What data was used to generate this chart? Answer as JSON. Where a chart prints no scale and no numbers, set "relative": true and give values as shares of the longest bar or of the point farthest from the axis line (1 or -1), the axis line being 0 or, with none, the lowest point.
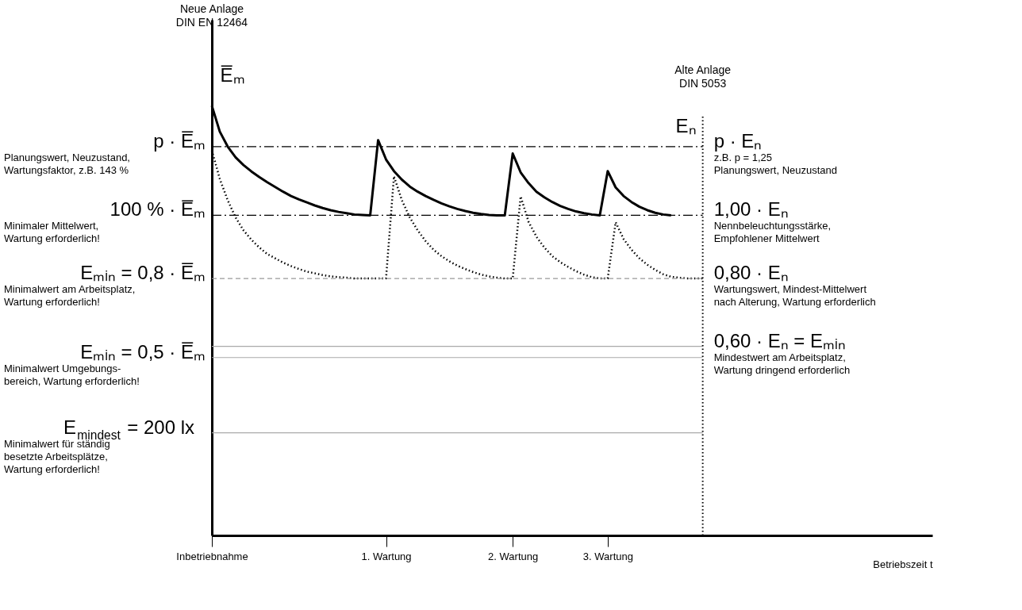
{
  "chart_data": {
    "type": "line",
    "relative": true,
    "xlabel": "Betriebszeit t",
    "ylabel": "E̅ₘ",
    "y2label": "Eₙ",
    "marker": "none",
    "categories": [
      "Inbetriebnahme",
      null,
      null,
      null,
      null,
      null,
      null,
      null,
      null,
      null,
      null,
      null,
      null,
      null,
      null,
      null,
      null,
      null,
      null,
      null,
      null,
      null,
      "1. Wartung",
      null,
      null,
      null,
      null,
      null,
      null,
      null,
      null,
      null,
      null,
      null,
      null,
      null,
      null,
      null,
      "2. Wartung",
      null,
      null,
      null,
      null,
      null,
      null,
      null,
      null,
      null,
      null,
      null,
      "3. Wartung",
      null,
      null,
      null,
      null,
      null,
      null,
      null,
      null,
      null,
      null,
      null,
      null,
      null,
      null,
      null,
      null,
      null,
      null,
      null,
      null,
      null,
      null,
      null,
      null,
      null,
      null,
      null,
      null,
      null,
      null,
      null,
      null,
      null,
      null,
      null,
      null,
      null,
      null,
      null,
      null,
      null
    ],
    "series": [
      {
        "color": "#000000",
        "line_style": "solid",
        "values": [
          1.0,
          0.94,
          0.905,
          0.88,
          0.862,
          0.847,
          0.834,
          0.822,
          0.811,
          0.8,
          0.79,
          0.782,
          0.775,
          0.768,
          0.762,
          0.757,
          0.753,
          0.75,
          0.747,
          0.746,
          0.745,
          0.92,
          0.875,
          0.848,
          0.828,
          0.812,
          0.8,
          0.79,
          0.781,
          0.773,
          0.766,
          0.76,
          0.755,
          0.751,
          0.748,
          0.746,
          0.745,
          0.745,
          0.889,
          0.845,
          0.82,
          0.8,
          0.787,
          0.776,
          0.767,
          0.76,
          0.754,
          0.75,
          0.747,
          0.745,
          0.848,
          0.81,
          0.79,
          0.776,
          0.765,
          0.757,
          0.751,
          0.747,
          0.745,
          null,
          null,
          null,
          null,
          null,
          null,
          null,
          null,
          null,
          null,
          null,
          null,
          null,
          null,
          null,
          null,
          null,
          null,
          null,
          null,
          null,
          null,
          null,
          null,
          null,
          null,
          null,
          null,
          null,
          null,
          null,
          null,
          null
        ]
      },
      {
        "color": "#000000",
        "line_style": "dotted",
        "values": [
          0.896,
          0.83,
          0.78,
          0.74,
          0.71,
          0.688,
          0.67,
          0.655,
          0.645,
          0.635,
          0.627,
          0.62,
          0.614,
          0.61,
          0.606,
          0.603,
          0.601,
          0.6,
          0.598,
          0.598,
          0.598,
          0.598,
          0.598,
          0.836,
          0.78,
          0.74,
          0.71,
          0.685,
          0.665,
          0.65,
          0.638,
          0.628,
          0.62,
          0.613,
          0.607,
          0.603,
          0.6,
          0.598,
          0.598,
          0.789,
          0.73,
          0.695,
          0.67,
          0.65,
          0.636,
          0.625,
          0.615,
          0.607,
          0.601,
          0.598,
          0.598,
          0.729,
          0.69,
          0.665,
          0.645,
          0.63,
          0.618,
          0.608,
          0.602,
          0.6,
          0.598,
          0.598,
          0.598,
          null,
          null,
          null,
          null,
          null,
          null,
          null,
          null,
          null,
          null,
          null,
          null,
          null,
          null,
          null,
          null,
          null,
          null,
          null,
          null,
          null,
          null,
          null,
          null,
          null,
          null,
          null,
          null,
          null
        ]
      }
    ],
    "ref_lines": [
      {
        "axis": "y",
        "value": 0.905,
        "color": "#000000",
        "line_style": "dashdot"
      },
      {
        "axis": "y",
        "value": 0.745,
        "color": "#000000",
        "line_style": "dashdot"
      },
      {
        "axis": "y",
        "value": 0.598,
        "color": "#999999",
        "line_style": "dashed"
      },
      {
        "axis": "y",
        "value": 0.44,
        "color": "#aaaaaa",
        "line_style": "solid"
      },
      {
        "axis": "y",
        "value": 0.414,
        "color": "#aaaaaa",
        "line_style": "solid"
      },
      {
        "axis": "y",
        "value": 0.239,
        "color": "#aaaaaa",
        "line_style": "solid"
      }
    ],
    "annotations": [
      "Neue Anlage\nDIN EN 12464",
      "Alte Anlage\nDIN 5053",
      "p · E̅ₘ",
      "Planungswert, Neuzustand,\nWartungsfaktor, z.B. 143 %",
      "100 % · E̅ₘ",
      "Minimaler Mittelwert,\nWartung erforderlich!",
      "Eₘᵢₙ = 0,8 · E̅ₘ",
      "Minimalwert am Arbeitsplatz,\nWartung erforderlich!",
      "Eₘᵢₙ = 0,5 · E̅ₘ",
      "Minimalwert Umgebungs-\nbereich, Wartung erforderlich!",
      "E$_{mindest}$ = 200 lx",
      "Minimalwert für ständig\nbesetzte Arbeitsplätze,\nWartung erforderlich!",
      "p · Eₙ",
      "z.B.  p = 1,25\nPlanungswert, Neuzustand",
      "1,00 · Eₙ",
      "Nennbeleuchtungsstärke,\nEmpfohlener Mittelwert",
      "0,80 · Eₙ",
      "Wartungswert, Mindest-Mittelwert\nnach Alterung, Wartung erforderlich",
      "0,60 · Eₙ = Eₘᵢₙ",
      "Mindestwert am Arbeitsplatz,\nWartung dringend erforderlich"
    ]
  }
}
